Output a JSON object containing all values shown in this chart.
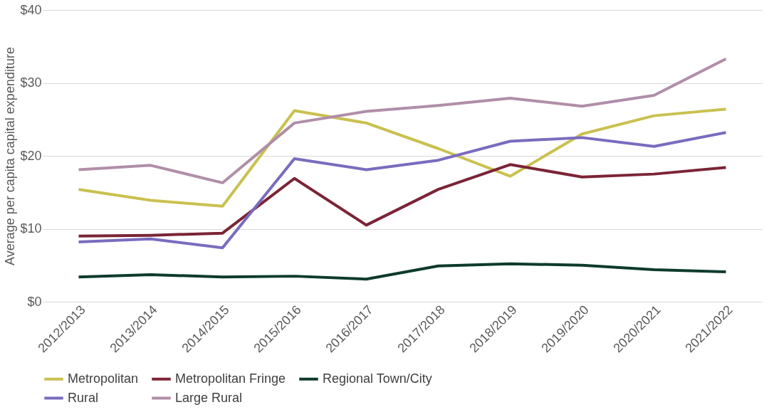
{
  "chart_data": {
    "type": "line",
    "ylabel": "Average per capita capital expenditure",
    "categories": [
      "2012/2013",
      "2013/2014",
      "2014/2015",
      "2015/2016",
      "2016/2017",
      "2017/2018",
      "2018/2019",
      "2019/2020",
      "2020/2021",
      "2021/2022"
    ],
    "series": [
      {
        "name": "Metropolitan",
        "color": "#c9c150",
        "values": [
          15.4,
          13.9,
          13.1,
          26.2,
          24.5,
          21.0,
          17.2,
          23.0,
          25.5,
          26.4
        ]
      },
      {
        "name": "Metropolitan Fringe",
        "color": "#7b2436",
        "values": [
          9.0,
          9.1,
          9.4,
          16.9,
          10.5,
          15.4,
          18.8,
          17.1,
          17.5,
          18.4
        ]
      },
      {
        "name": "Regional Town/City",
        "color": "#0d3b2e",
        "values": [
          3.4,
          3.7,
          3.4,
          3.5,
          3.1,
          4.9,
          5.2,
          5.0,
          4.4,
          4.1
        ]
      },
      {
        "name": "Rural",
        "color": "#7a6bbf",
        "values": [
          8.2,
          8.6,
          7.4,
          19.6,
          18.1,
          19.4,
          22.0,
          22.5,
          21.3,
          23.2
        ]
      },
      {
        "name": "Large Rural",
        "color": "#b08ea8",
        "values": [
          18.1,
          18.7,
          16.3,
          24.5,
          26.1,
          26.9,
          27.9,
          26.8,
          28.3,
          33.3
        ]
      }
    ],
    "ylim": [
      0,
      40
    ],
    "yticks": [
      {
        "value": 0,
        "label": "$0"
      },
      {
        "value": 10,
        "label": "$10"
      },
      {
        "value": 20,
        "label": "$20"
      },
      {
        "value": 30,
        "label": "$30"
      },
      {
        "value": 40,
        "label": "$40"
      }
    ],
    "grid": "y",
    "legend": "bottom",
    "marker": "none",
    "line_style": "solid"
  }
}
